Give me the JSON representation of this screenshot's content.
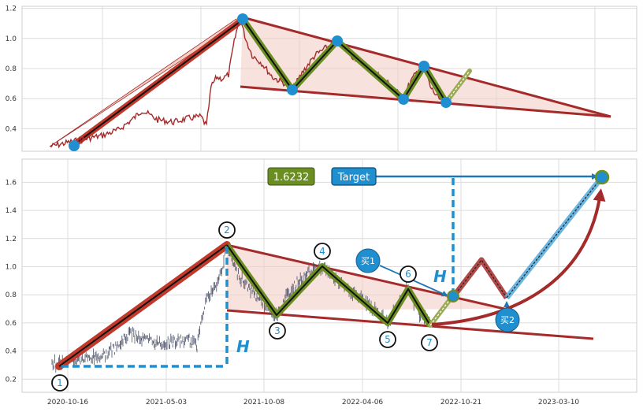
{
  "chart_data": [
    {
      "type": "line",
      "name": "top-panel",
      "ylim": [
        0.22,
        1.2
      ],
      "yticks": [
        0.4,
        0.6,
        0.8,
        1.0,
        1.2
      ],
      "grid": true,
      "colors": {
        "price": "#a52a2a",
        "marker": "#1f8fd0",
        "pattern": "#6b8e23",
        "triangle": "#f4cfc6",
        "edge": "#a52a2a"
      },
      "pivots": [
        {
          "x": "2020-10-29",
          "y": 0.28
        },
        {
          "x": "2021-07-01",
          "y": 1.13
        },
        {
          "x": "2021-09-12",
          "y": 0.66
        },
        {
          "x": "2021-12-31",
          "y": 0.97
        },
        {
          "x": "2022-06-06",
          "y": 0.59
        },
        {
          "x": "2022-07-29",
          "y": 0.82
        },
        {
          "x": "2022-09-12",
          "y": 0.57
        }
      ]
    },
    {
      "type": "line",
      "name": "bottom-panel",
      "ylim": [
        0.13,
        1.76
      ],
      "yticks": [
        0.2,
        0.4,
        0.6,
        0.8,
        1.0,
        1.2,
        1.4,
        1.6
      ],
      "xticks": [
        "2020-10-16",
        "2021-05-03",
        "2021-10-08",
        "2022-04-06",
        "2022-10-21",
        "2023-03-10"
      ],
      "grid": true,
      "pivots": [
        {
          "label": "1",
          "x": "2020-10-16",
          "y": 0.28
        },
        {
          "label": "2",
          "x": "2021-07-01",
          "y": 1.15
        },
        {
          "label": "3",
          "x": "2021-09-24",
          "y": 0.65
        },
        {
          "label": "4",
          "x": "2021-12-31",
          "y": 0.99
        },
        {
          "label": "5",
          "x": "2022-06-06",
          "y": 0.59
        },
        {
          "label": "6",
          "x": "2022-07-29",
          "y": 0.82
        },
        {
          "label": "7",
          "x": "2022-09-12",
          "y": 0.57
        }
      ],
      "projection": [
        {
          "x": "2022-10-21",
          "y": 0.78
        },
        {
          "x": "2022-11-27",
          "y": 1.04
        },
        {
          "x": "2023-01-05",
          "y": 0.76
        },
        {
          "x": "2023-04-12",
          "y": 1.62
        }
      ],
      "target_value": "1.6232",
      "target_text": "Target",
      "buy_labels": [
        "买1",
        "买2"
      ],
      "height_label": "H"
    }
  ]
}
